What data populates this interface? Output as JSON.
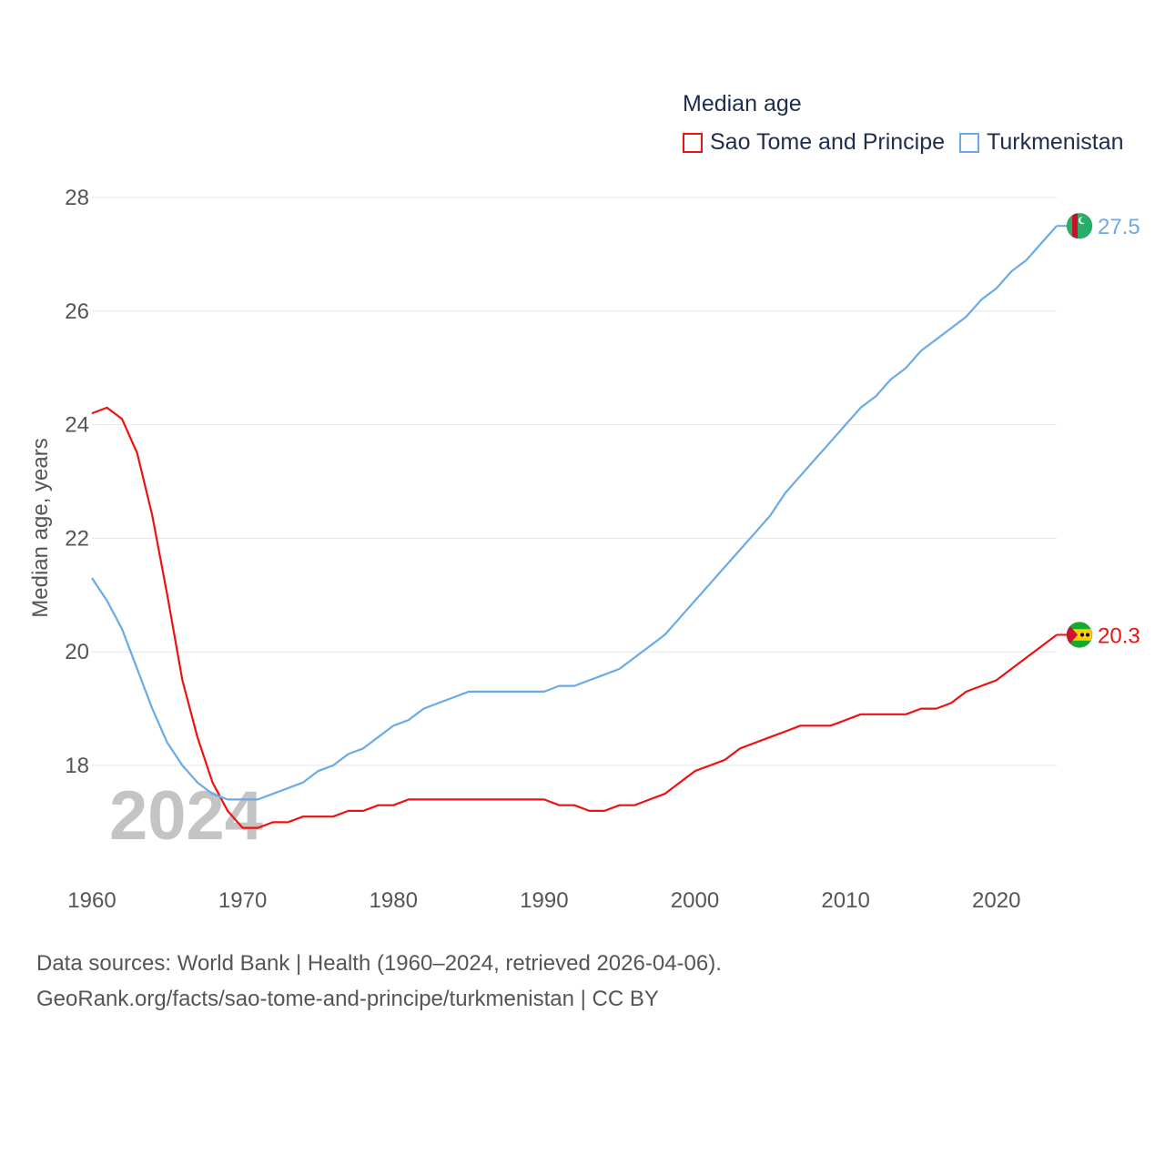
{
  "legend": {
    "title": "Median age",
    "items": [
      {
        "label": "Sao Tome and Principe",
        "color": "#ee1111"
      },
      {
        "label": "Turkmenistan",
        "color": "#6aaae6"
      }
    ]
  },
  "footer": {
    "line1": "Data sources: World Bank | Health (1960–2024, retrieved 2026-04-06).",
    "line2": "GeoRank.org/facts/sao-tome-and-principe/turkmenistan | CC BY"
  },
  "chart_data": {
    "type": "line",
    "title": "Median age",
    "xlabel": "",
    "ylabel": "Median age, years",
    "watermark_year": "2024",
    "xlim": [
      1960,
      2024
    ],
    "ylim": [
      16.2,
      28.4
    ],
    "grid": true,
    "x_ticks": [
      1960,
      1970,
      1980,
      1990,
      2000,
      2010,
      2020
    ],
    "y_ticks": [
      18,
      20,
      22,
      24,
      26,
      28
    ],
    "x": [
      1960,
      1961,
      1962,
      1963,
      1964,
      1965,
      1966,
      1967,
      1968,
      1969,
      1970,
      1971,
      1972,
      1973,
      1974,
      1975,
      1976,
      1977,
      1978,
      1979,
      1980,
      1981,
      1982,
      1983,
      1984,
      1985,
      1986,
      1987,
      1988,
      1989,
      1990,
      1991,
      1992,
      1993,
      1994,
      1995,
      1996,
      1997,
      1998,
      1999,
      2000,
      2001,
      2002,
      2003,
      2004,
      2005,
      2006,
      2007,
      2008,
      2009,
      2010,
      2011,
      2012,
      2013,
      2014,
      2015,
      2016,
      2017,
      2018,
      2019,
      2020,
      2021,
      2022,
      2023,
      2024
    ],
    "series": [
      {
        "name": "Sao Tome and Principe",
        "color": "#ee1111",
        "end_label": "20.3",
        "flag": "sao-tome-and-principe-flag",
        "values": [
          24.2,
          24.3,
          24.1,
          23.5,
          22.4,
          21.0,
          19.5,
          18.5,
          17.7,
          17.2,
          16.9,
          16.9,
          17.0,
          17.0,
          17.1,
          17.1,
          17.1,
          17.2,
          17.2,
          17.3,
          17.3,
          17.4,
          17.4,
          17.4,
          17.4,
          17.4,
          17.4,
          17.4,
          17.4,
          17.4,
          17.4,
          17.3,
          17.3,
          17.2,
          17.2,
          17.3,
          17.3,
          17.4,
          17.5,
          17.7,
          17.9,
          18.0,
          18.1,
          18.3,
          18.4,
          18.5,
          18.6,
          18.7,
          18.7,
          18.7,
          18.8,
          18.9,
          18.9,
          18.9,
          18.9,
          19.0,
          19.0,
          19.1,
          19.3,
          19.4,
          19.5,
          19.7,
          19.9,
          20.1,
          20.3
        ]
      },
      {
        "name": "Turkmenistan",
        "color": "#6aaae6",
        "end_label": "27.5",
        "flag": "turkmenistan-flag",
        "values": [
          21.3,
          20.9,
          20.4,
          19.7,
          19.0,
          18.4,
          18.0,
          17.7,
          17.5,
          17.4,
          17.4,
          17.4,
          17.5,
          17.6,
          17.7,
          17.9,
          18.0,
          18.2,
          18.3,
          18.5,
          18.7,
          18.8,
          19.0,
          19.1,
          19.2,
          19.3,
          19.3,
          19.3,
          19.3,
          19.3,
          19.3,
          19.4,
          19.4,
          19.5,
          19.6,
          19.7,
          19.9,
          20.1,
          20.3,
          20.6,
          20.9,
          21.2,
          21.5,
          21.8,
          22.1,
          22.4,
          22.8,
          23.1,
          23.4,
          23.7,
          24.0,
          24.3,
          24.5,
          24.8,
          25.0,
          25.3,
          25.5,
          25.7,
          25.9,
          26.2,
          26.4,
          26.7,
          26.9,
          27.2,
          27.5
        ]
      }
    ]
  }
}
